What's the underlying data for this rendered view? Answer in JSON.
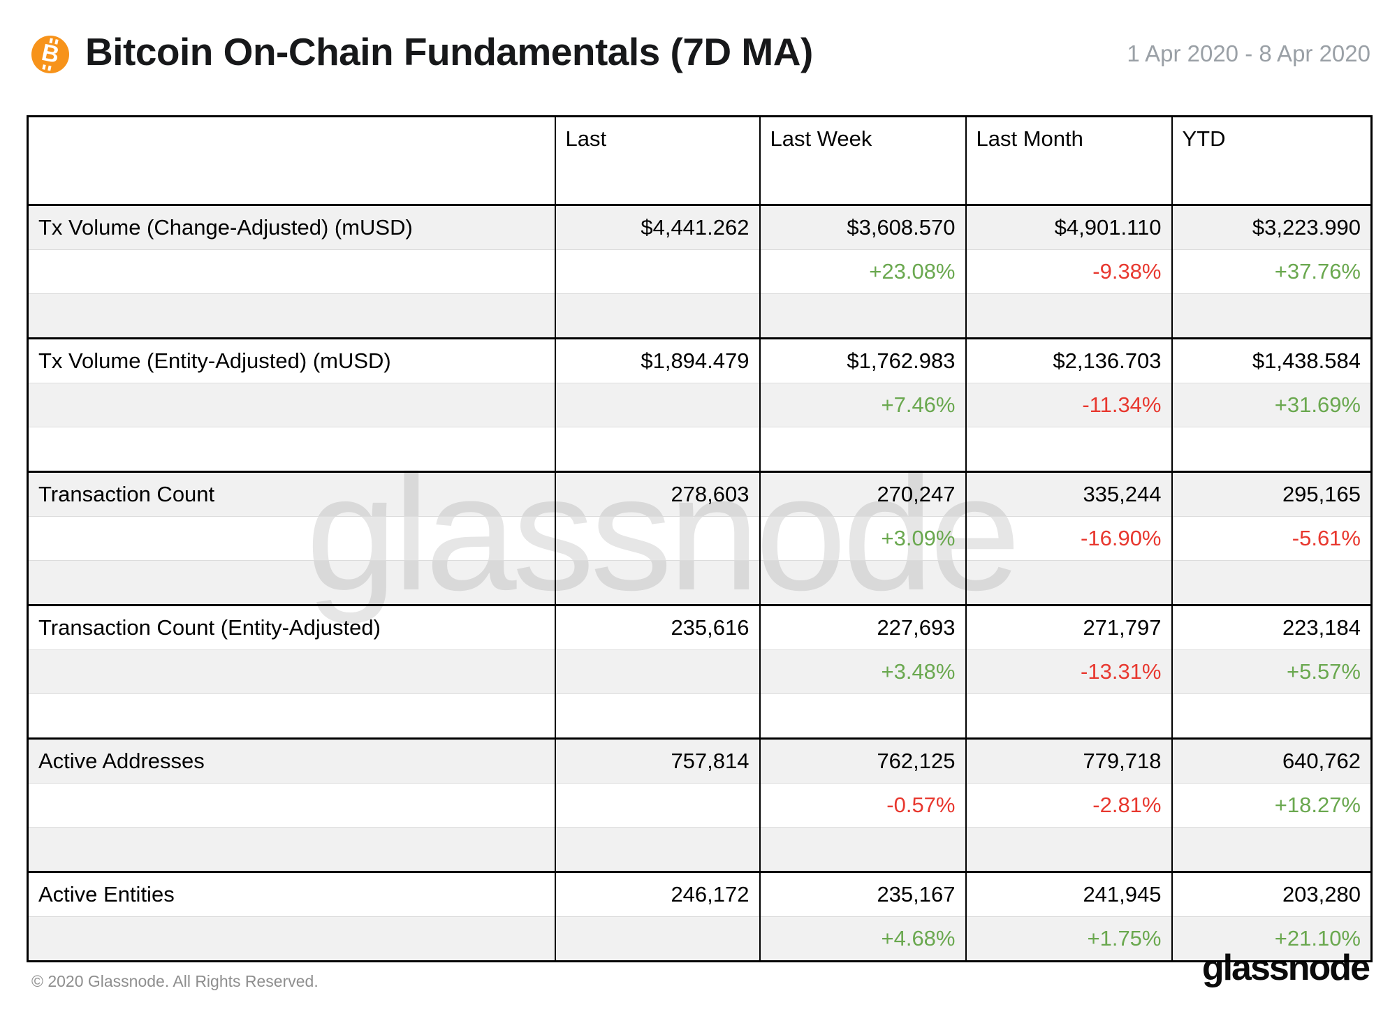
{
  "header": {
    "title": "Bitcoin On-Chain Fundamentals (7D MA)",
    "date_range": "1 Apr 2020 - 8 Apr 2020",
    "icon": "bitcoin-icon"
  },
  "chart_data": {
    "type": "table",
    "title": "Bitcoin On-Chain Fundamentals (7D MA)",
    "columns": [
      "",
      "Last",
      "Last Week",
      "Last Month",
      "YTD"
    ],
    "change_columns": [
      "Last Week",
      "Last Month",
      "YTD"
    ],
    "metrics": [
      {
        "name": "Tx Volume (Change-Adjusted) (mUSD)",
        "values": [
          "$4,441.262",
          "$3,608.570",
          "$4,901.110",
          "$3,223.990"
        ],
        "changes": [
          "+23.08%",
          "-9.38%",
          "+37.76%"
        ]
      },
      {
        "name": "Tx Volume (Entity-Adjusted) (mUSD)",
        "values": [
          "$1,894.479",
          "$1,762.983",
          "$2,136.703",
          "$1,438.584"
        ],
        "changes": [
          "+7.46%",
          "-11.34%",
          "+31.69%"
        ]
      },
      {
        "name": "Transaction Count",
        "values": [
          "278,603",
          "270,247",
          "335,244",
          "295,165"
        ],
        "changes": [
          "+3.09%",
          "-16.90%",
          "-5.61%"
        ]
      },
      {
        "name": "Transaction Count (Entity-Adjusted)",
        "values": [
          "235,616",
          "227,693",
          "271,797",
          "223,184"
        ],
        "changes": [
          "+3.48%",
          "-13.31%",
          "+5.57%"
        ]
      },
      {
        "name": "Active Addresses",
        "values": [
          "757,814",
          "762,125",
          "779,718",
          "640,762"
        ],
        "changes": [
          "-0.57%",
          "-2.81%",
          "+18.27%"
        ]
      },
      {
        "name": "Active Entities",
        "values": [
          "246,172",
          "235,167",
          "241,945",
          "203,280"
        ],
        "changes": [
          "+4.68%",
          "+1.75%",
          "+21.10%"
        ]
      }
    ]
  },
  "watermark": "glassnode",
  "footer": {
    "copyright": "© 2020 Glassnode. All Rights Reserved.",
    "logo": "glassnode"
  },
  "colors": {
    "positive": "#6aa84f",
    "negative": "#e8382f",
    "header_bg": "#b9b9b9",
    "accent_orange": "#f7931a"
  }
}
